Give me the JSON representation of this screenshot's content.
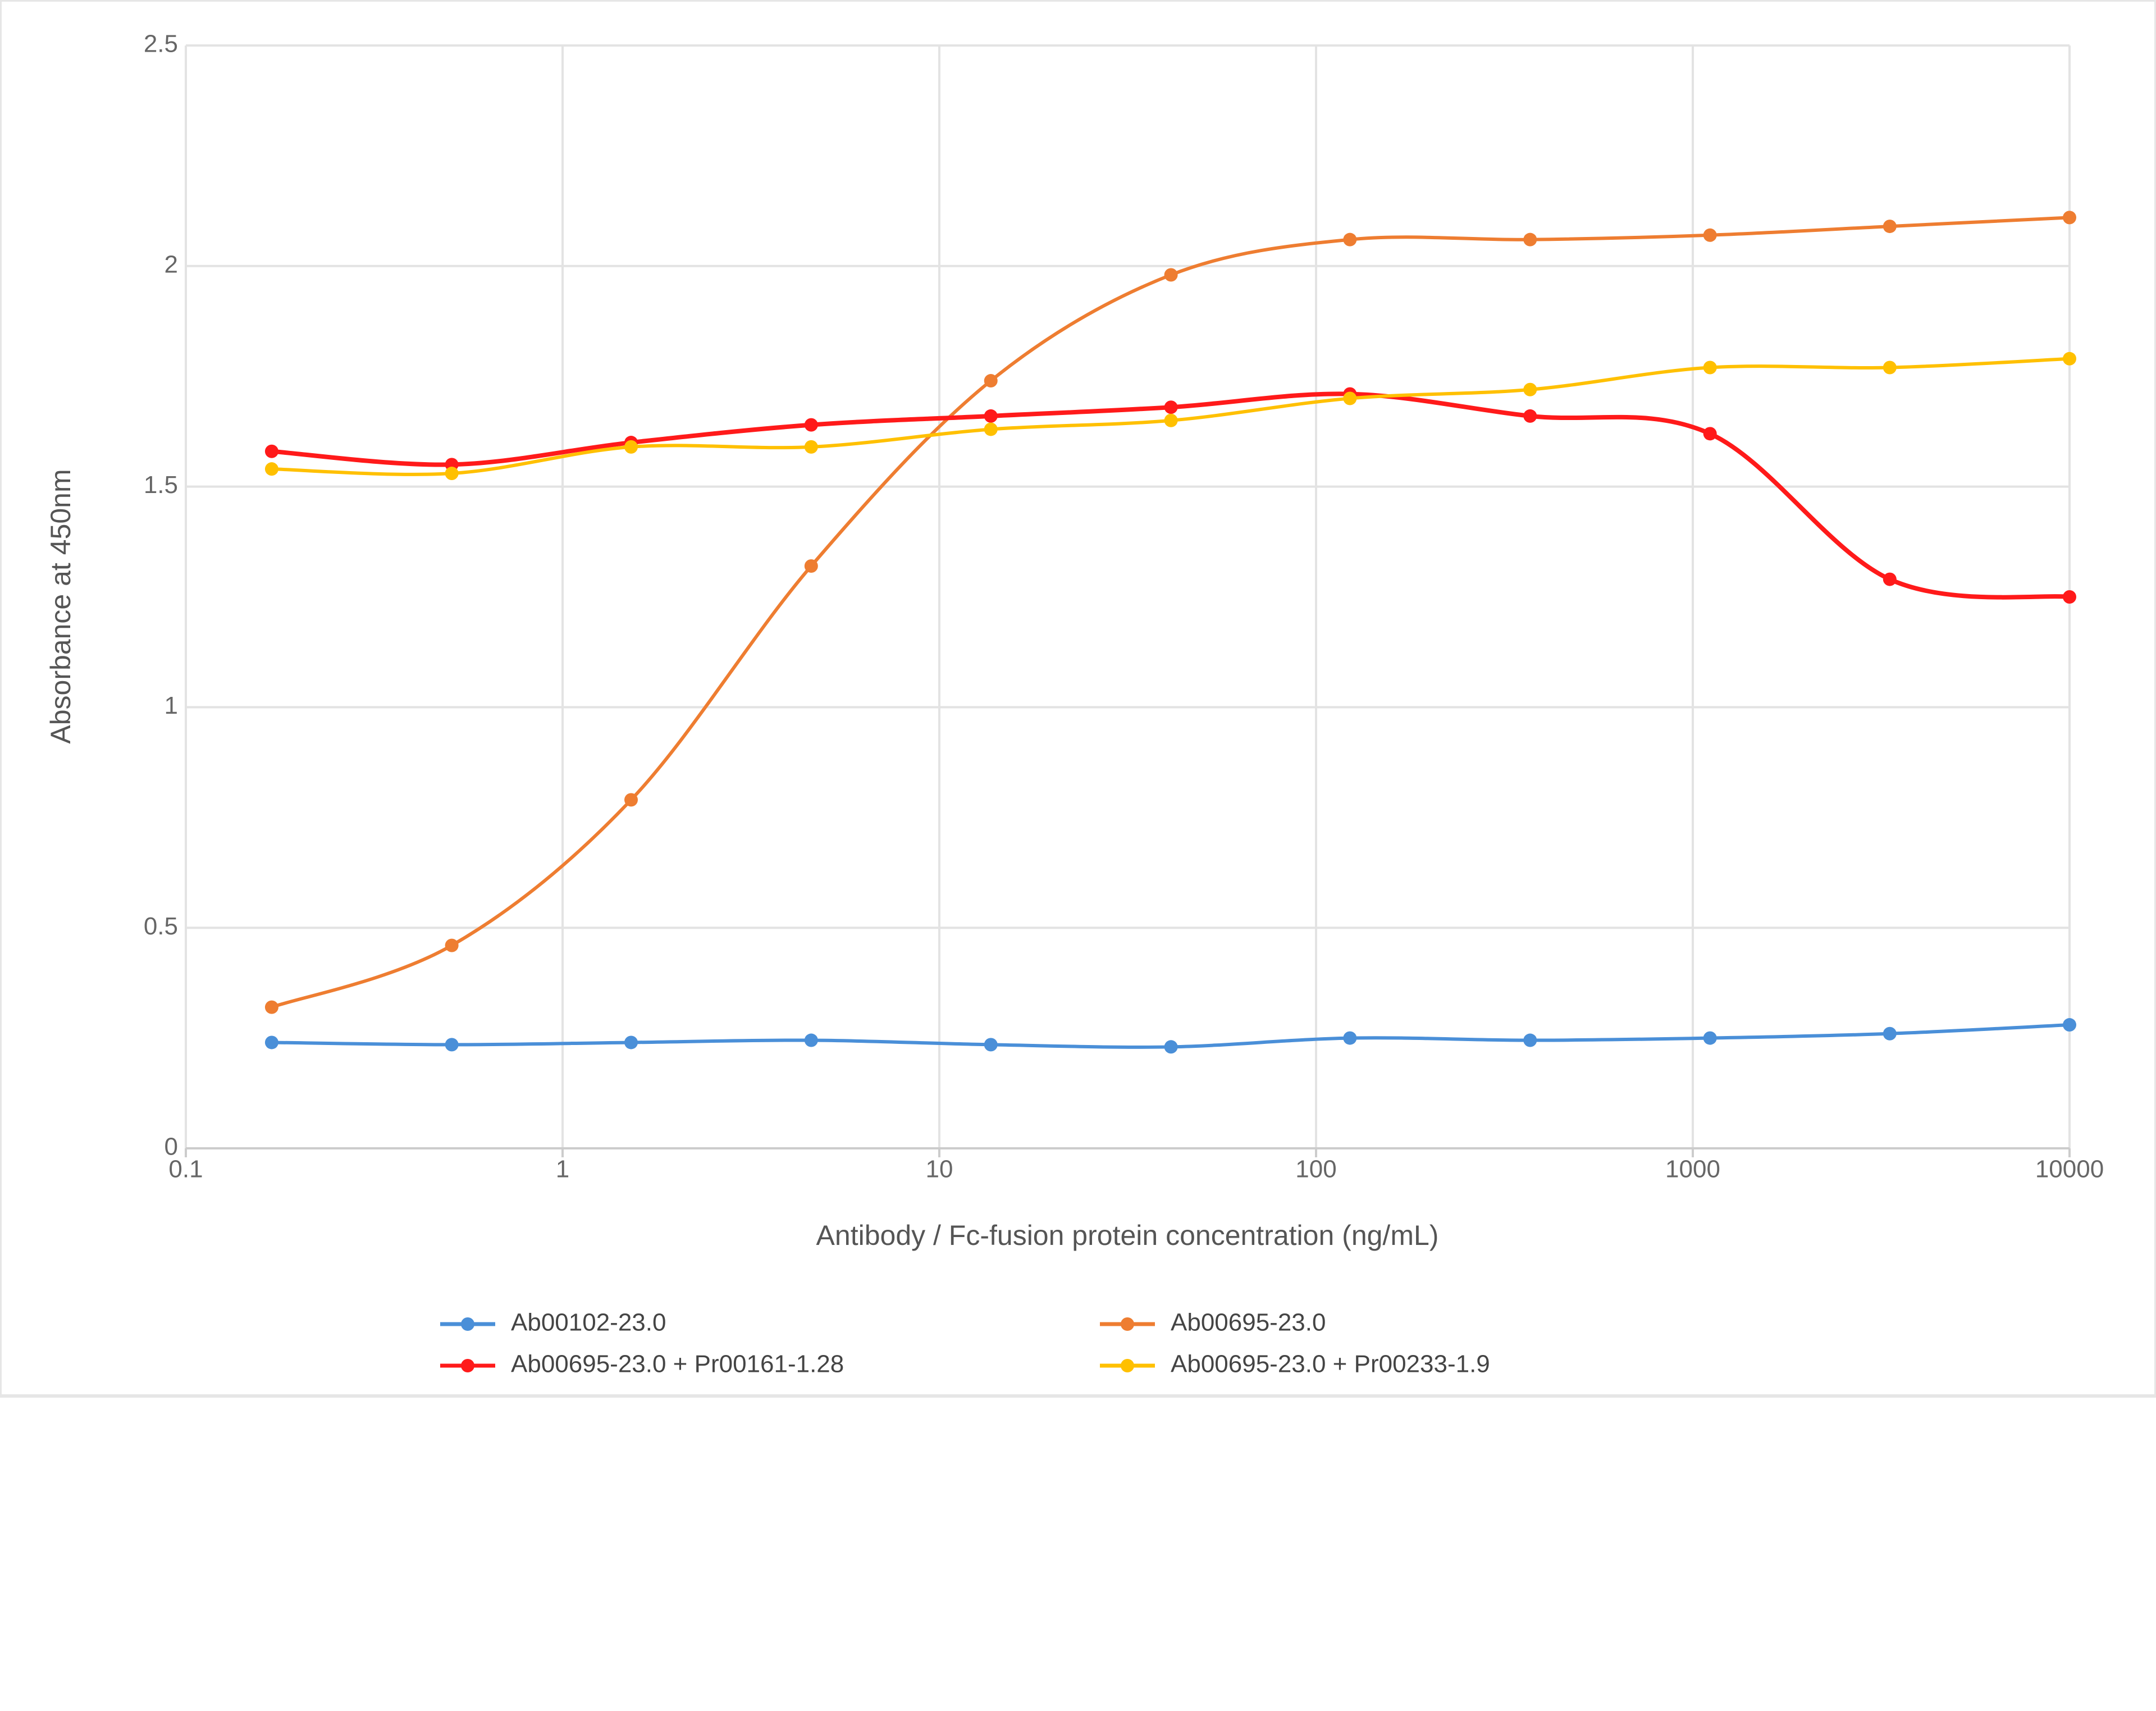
{
  "chart_data": {
    "type": "line",
    "x_label": "Antibody / Fc-fusion protein concentration (ng/mL)",
    "y_label": "Absorbance at 450nm",
    "x": [
      0.169,
      0.508,
      1.52,
      4.57,
      13.7,
      41.2,
      123,
      370,
      1111,
      3333,
      10000
    ],
    "xscale": "log",
    "xlim": [
      0.1,
      10000
    ],
    "xticks": [
      0.1,
      1,
      10,
      100,
      1000,
      10000
    ],
    "ylim": [
      0,
      2.5
    ],
    "yticks": [
      0,
      0.5,
      1,
      1.5,
      2,
      2.5
    ],
    "grid": true,
    "legend": "bottom",
    "series": [
      {
        "name": "Ab00102-23.0",
        "color": "#4a8fd8",
        "values": [
          0.24,
          0.235,
          0.24,
          0.245,
          0.235,
          0.23,
          0.25,
          0.245,
          0.25,
          0.26,
          0.28
        ]
      },
      {
        "name": "Ab00695-23.0",
        "color": "#ee7d31",
        "values": [
          0.32,
          0.46,
          0.79,
          1.32,
          1.74,
          1.98,
          2.06,
          2.06,
          2.07,
          2.09,
          2.11
        ]
      },
      {
        "name": "Ab00695-23.0 + Pr00161-1.28",
        "color": "#ff1a1a",
        "values": [
          1.58,
          1.55,
          1.6,
          1.64,
          1.66,
          1.68,
          1.71,
          1.66,
          1.62,
          1.29,
          1.25
        ]
      },
      {
        "name": "Ab00695-23.0 + Pr00233-1.9",
        "color": "#ffc000",
        "values": [
          1.54,
          1.53,
          1.59,
          1.59,
          1.63,
          1.65,
          1.7,
          1.72,
          1.77,
          1.77,
          1.79
        ]
      }
    ]
  }
}
